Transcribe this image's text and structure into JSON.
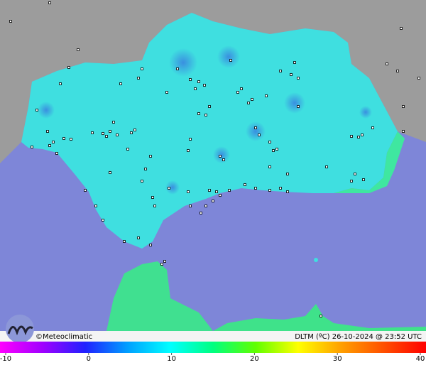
{
  "map": {
    "credit": "©Meteoclimatic",
    "caption": "DLTM (ºC) 26-10-2024 @ 23:52 UTC"
  },
  "legend": {
    "range": [
      -10,
      40
    ],
    "ticks": [
      -10,
      0,
      10,
      20,
      30,
      40
    ]
  }
}
